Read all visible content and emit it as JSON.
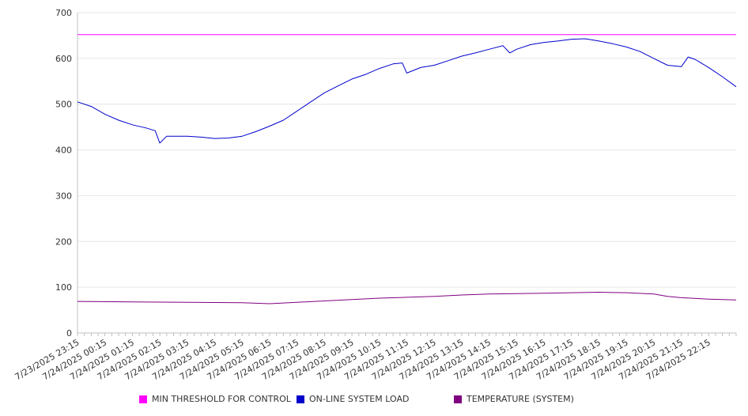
{
  "chart_data": {
    "type": "line",
    "title": "",
    "xlabel": "",
    "ylabel": "",
    "ylim": [
      0,
      700
    ],
    "yticks": [
      0,
      100,
      200,
      300,
      400,
      500,
      600,
      700
    ],
    "xlim": [
      "7/23/2025 23:15",
      "7/24/2025 23:15"
    ],
    "xtick_labels": [
      "7/23/2025 23:15",
      "7/24/2025 00:15",
      "7/24/2025 01:15",
      "7/24/2025 02:15",
      "7/24/2025 03:15",
      "7/24/2025 04:15",
      "7/24/2025 05:15",
      "7/24/2025 06:15",
      "7/24/2025 07:15",
      "7/24/2025 08:15",
      "7/24/2025 09:15",
      "7/24/2025 10:15",
      "7/24/2025 11:15",
      "7/24/2025 12:15",
      "7/24/2025 13:15",
      "7/24/2025 14:15",
      "7/24/2025 15:15",
      "7/24/2025 16:15",
      "7/24/2025 17:15",
      "7/24/2025 18:15",
      "7/24/2025 19:15",
      "7/24/2025 20:15",
      "7/24/2025 21:15",
      "7/24/2025 22:15"
    ],
    "grid": true,
    "legend_position": "bottom",
    "series": [
      {
        "name": "MIN THRESHOLD FOR CONTROL",
        "color": "#ff00ff",
        "x": [
          "7/23/2025 23:15",
          "7/24/2025 23:15"
        ],
        "y": [
          652,
          652
        ]
      },
      {
        "name": "ON-LINE SYSTEM LOAD",
        "color": "#0000cc",
        "x": [
          "7/23/2025 23:15",
          "7/23/2025 23:45",
          "7/24/2025 00:15",
          "7/24/2025 00:45",
          "7/24/2025 01:15",
          "7/24/2025 01:45",
          "7/24/2025 02:05",
          "7/24/2025 02:15",
          "7/24/2025 02:30",
          "7/24/2025 03:15",
          "7/24/2025 03:45",
          "7/24/2025 04:15",
          "7/24/2025 04:45",
          "7/24/2025 05:15",
          "7/24/2025 05:45",
          "7/24/2025 06:15",
          "7/24/2025 06:45",
          "7/24/2025 07:15",
          "7/24/2025 07:45",
          "7/24/2025 08:15",
          "7/24/2025 08:45",
          "7/24/2025 09:15",
          "7/24/2025 09:45",
          "7/24/2025 10:15",
          "7/24/2025 10:45",
          "7/24/2025 11:05",
          "7/24/2025 11:15",
          "7/24/2025 11:45",
          "7/24/2025 12:15",
          "7/24/2025 12:45",
          "7/24/2025 13:15",
          "7/24/2025 13:45",
          "7/24/2025 14:15",
          "7/24/2025 14:45",
          "7/24/2025 15:00",
          "7/24/2025 15:15",
          "7/24/2025 15:45",
          "7/24/2025 16:15",
          "7/24/2025 16:45",
          "7/24/2025 17:15",
          "7/24/2025 17:45",
          "7/24/2025 18:15",
          "7/24/2025 18:45",
          "7/24/2025 19:15",
          "7/24/2025 19:45",
          "7/24/2025 20:15",
          "7/24/2025 20:45",
          "7/24/2025 21:15",
          "7/24/2025 21:30",
          "7/24/2025 21:45",
          "7/24/2025 22:15",
          "7/24/2025 22:45",
          "7/24/2025 23:15"
        ],
        "y": [
          505,
          495,
          478,
          465,
          455,
          448,
          442,
          415,
          430,
          430,
          428,
          425,
          426,
          430,
          440,
          452,
          465,
          485,
          505,
          525,
          540,
          555,
          565,
          578,
          588,
          590,
          568,
          580,
          585,
          595,
          605,
          612,
          620,
          628,
          612,
          620,
          630,
          635,
          638,
          642,
          643,
          638,
          632,
          625,
          615,
          600,
          585,
          582,
          603,
          598,
          580,
          560,
          538
        ]
      },
      {
        "name": "TEMPERATURE (SYSTEM)",
        "color": "#800080",
        "x": [
          "7/23/2025 23:15",
          "7/24/2025 01:15",
          "7/24/2025 03:15",
          "7/24/2025 05:15",
          "7/24/2025 06:15",
          "7/24/2025 07:15",
          "7/24/2025 08:15",
          "7/24/2025 09:15",
          "7/24/2025 10:15",
          "7/24/2025 11:15",
          "7/24/2025 12:15",
          "7/24/2025 13:15",
          "7/24/2025 14:15",
          "7/24/2025 15:15",
          "7/24/2025 16:15",
          "7/24/2025 17:15",
          "7/24/2025 18:15",
          "7/24/2025 19:15",
          "7/24/2025 20:15",
          "7/24/2025 20:45",
          "7/24/2025 21:15",
          "7/24/2025 22:15",
          "7/24/2025 23:15"
        ],
        "y": [
          69,
          68,
          67,
          66,
          64,
          67,
          70,
          73,
          76,
          78,
          80,
          83,
          85,
          86,
          87,
          88,
          89,
          88,
          85,
          80,
          77,
          74,
          72
        ]
      }
    ]
  }
}
